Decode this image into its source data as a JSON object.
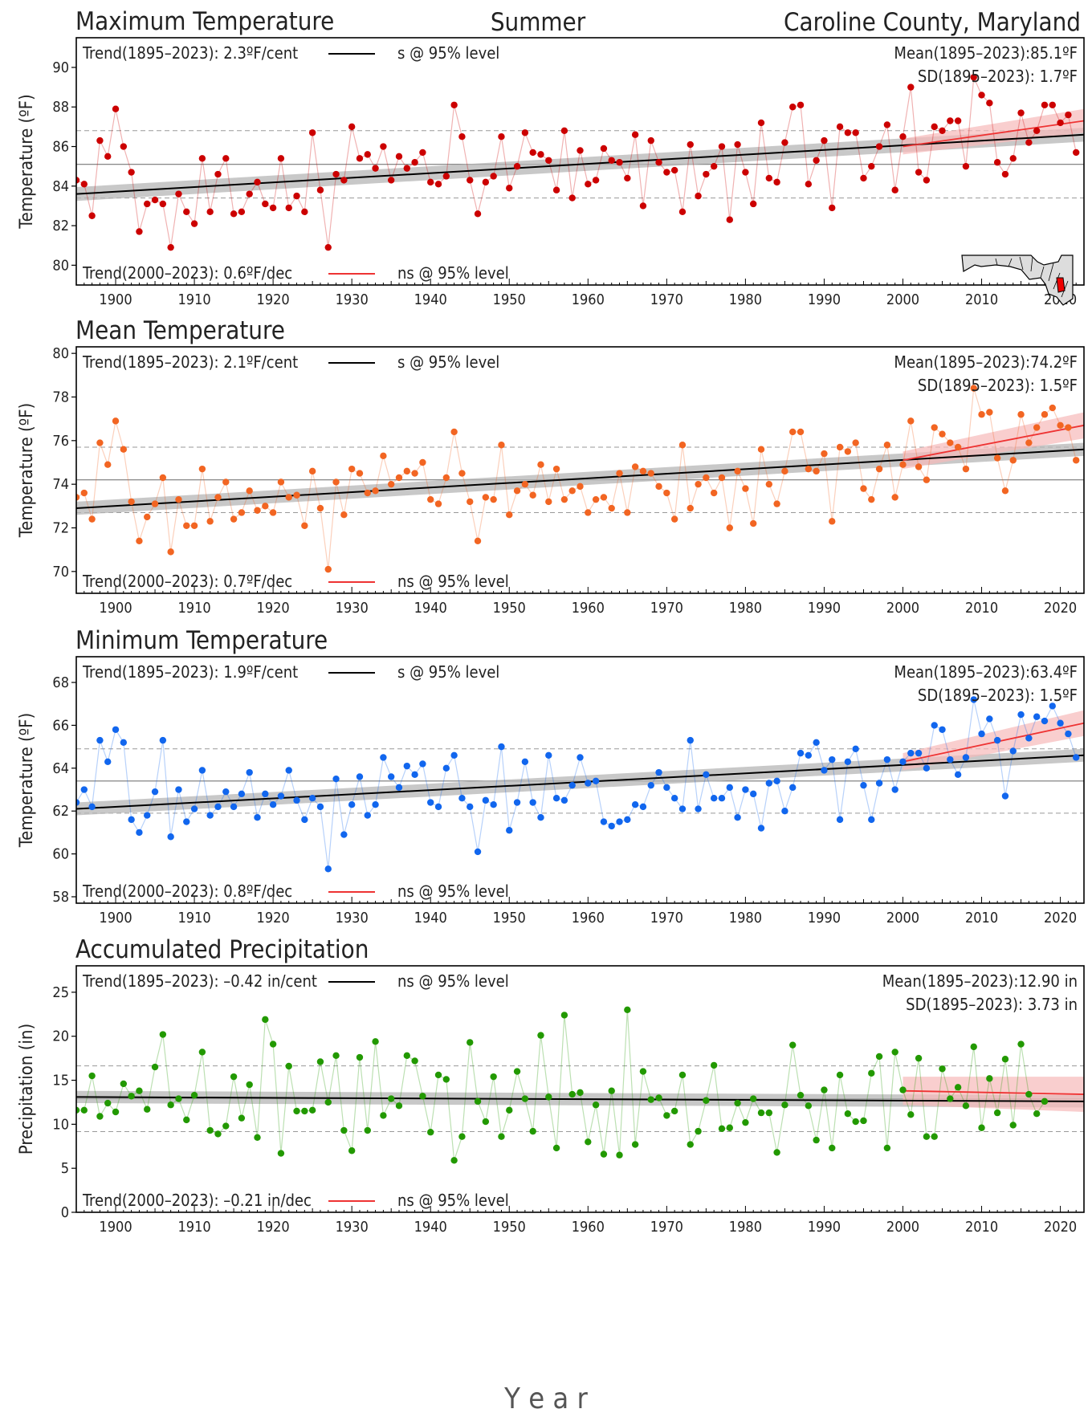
{
  "header": {
    "season": "Summer",
    "location": "Caroline County, Maryland",
    "xlabel": "Y e a r"
  },
  "colors": {
    "trend_long": "#000000",
    "trend_recent": "#ee3333",
    "band_long": "#b5b5b5",
    "band_recent": "#f6b9b9",
    "max_temp": "#cc0000",
    "mean_temp": "#f26522",
    "min_temp": "#1166ee",
    "precip": "#229900"
  },
  "chart_data": [
    {
      "id": "max",
      "type": "line",
      "title": "Maximum Temperature",
      "ylabel": "Temperature (ºF)",
      "color": "#cc0000",
      "ylim": [
        79,
        91.5
      ],
      "yticks": [
        80,
        82,
        84,
        86,
        88,
        90
      ],
      "xlim": [
        1895,
        2023
      ],
      "xticks": [
        1900,
        1910,
        1920,
        1930,
        1940,
        1950,
        1960,
        1970,
        1980,
        1990,
        2000,
        2010,
        2020
      ],
      "start_year": 1895,
      "mean": 85.1,
      "sd": 1.7,
      "trend_long": {
        "y_start": 83.6,
        "y_end": 86.6,
        "band_start": 0.35,
        "band_end": 0.35
      },
      "trend_recent": {
        "y_start": 86.0,
        "y_end": 87.3,
        "band_start": 0.4,
        "band_end": 0.6
      },
      "legend_long": "Trend(1895–2023):  2.3ºF/cent",
      "legend_long_sig": "s @ 95% level",
      "legend_recent": "Trend(2000–2023):  0.6ºF/dec",
      "legend_recent_sig": "ns @ 95% level",
      "mean_label": "Mean(1895–2023):85.1ºF",
      "sd_label": "SD(1895–2023): 1.7ºF",
      "values": [
        84.3,
        84.1,
        82.5,
        86.3,
        85.5,
        87.9,
        86.0,
        84.7,
        81.7,
        83.1,
        83.3,
        83.1,
        80.9,
        83.6,
        82.7,
        82.1,
        85.4,
        82.7,
        84.6,
        85.4,
        82.6,
        82.7,
        83.6,
        84.2,
        83.1,
        82.9,
        85.4,
        82.9,
        83.5,
        82.7,
        86.7,
        83.8,
        80.9,
        84.6,
        84.3,
        87.0,
        85.4,
        85.6,
        84.9,
        86.0,
        84.3,
        85.5,
        84.9,
        85.2,
        85.7,
        84.2,
        84.1,
        84.5,
        88.1,
        86.5,
        84.3,
        82.6,
        84.2,
        84.5,
        86.5,
        83.9,
        85.0,
        86.7,
        85.7,
        85.6,
        85.3,
        83.8,
        86.8,
        83.4,
        85.8,
        84.1,
        84.3,
        85.9,
        85.3,
        85.2,
        84.4,
        86.6,
        83.0,
        86.3,
        85.2,
        84.7,
        84.8,
        82.7,
        86.1,
        83.5,
        84.6,
        85.0,
        86.0,
        82.3,
        86.1,
        84.7,
        83.1,
        87.2,
        84.4,
        84.2,
        86.2,
        88.0,
        88.1,
        84.1,
        85.3,
        86.3,
        82.9,
        87.0,
        86.7,
        86.7,
        84.4,
        85.0,
        86.0,
        87.1,
        83.8,
        86.5,
        89.0,
        84.7,
        84.3,
        87.0,
        86.8,
        87.3,
        87.3,
        85.0,
        89.5,
        88.6,
        88.2,
        85.2,
        84.6,
        85.4,
        87.7,
        86.2,
        86.8,
        88.1,
        88.1,
        87.2,
        87.6,
        85.7
      ]
    },
    {
      "id": "mean",
      "type": "line",
      "title": "Mean Temperature",
      "ylabel": "Temperature (ºF)",
      "color": "#f26522",
      "ylim": [
        69,
        80.3
      ],
      "yticks": [
        70,
        72,
        74,
        76,
        78,
        80
      ],
      "xlim": [
        1895,
        2023
      ],
      "xticks": [
        1900,
        1910,
        1920,
        1930,
        1940,
        1950,
        1960,
        1970,
        1980,
        1990,
        2000,
        2010,
        2020
      ],
      "start_year": 1895,
      "mean": 74.2,
      "sd": 1.5,
      "trend_long": {
        "y_start": 72.9,
        "y_end": 75.6,
        "band_start": 0.3,
        "band_end": 0.3
      },
      "trend_recent": {
        "y_start": 75.1,
        "y_end": 76.7,
        "band_start": 0.4,
        "band_end": 0.6
      },
      "legend_long": "Trend(1895–2023):  2.1ºF/cent",
      "legend_long_sig": "s @ 95% level",
      "legend_recent": "Trend(2000–2023):  0.7ºF/dec",
      "legend_recent_sig": "ns @ 95% level",
      "mean_label": "Mean(1895–2023):74.2ºF",
      "sd_label": "SD(1895–2023): 1.5ºF",
      "values": [
        73.4,
        73.6,
        72.4,
        75.9,
        74.9,
        76.9,
        75.6,
        73.2,
        71.4,
        72.5,
        73.1,
        74.3,
        70.9,
        73.3,
        72.1,
        72.1,
        74.7,
        72.3,
        73.4,
        74.1,
        72.4,
        72.7,
        73.7,
        72.8,
        73.0,
        72.7,
        74.1,
        73.4,
        73.5,
        72.1,
        74.6,
        72.9,
        70.1,
        74.1,
        72.6,
        74.7,
        74.5,
        73.6,
        73.7,
        75.3,
        74.0,
        74.3,
        74.6,
        74.5,
        75.0,
        73.3,
        73.1,
        74.3,
        76.4,
        74.5,
        73.2,
        71.4,
        73.4,
        73.3,
        75.8,
        72.6,
        73.7,
        74.0,
        73.5,
        74.9,
        73.2,
        74.7,
        73.3,
        73.7,
        73.9,
        72.7,
        73.3,
        73.4,
        72.9,
        74.5,
        72.7,
        74.8,
        74.6,
        74.5,
        73.9,
        73.6,
        72.4,
        75.8,
        72.9,
        74.0,
        74.3,
        73.6,
        74.3,
        72.0,
        74.6,
        73.8,
        72.2,
        75.6,
        74.0,
        73.1,
        74.6,
        76.4,
        76.4,
        74.7,
        74.6,
        75.4,
        72.3,
        75.7,
        75.5,
        75.9,
        73.8,
        73.3,
        74.7,
        75.8,
        73.4,
        74.9,
        76.9,
        74.8,
        74.2,
        76.6,
        76.3,
        75.9,
        75.7,
        74.7,
        78.4,
        77.2,
        77.3,
        75.2,
        73.7,
        75.1,
        77.2,
        75.9,
        76.6,
        77.2,
        77.5,
        76.7,
        76.6,
        75.1
      ]
    },
    {
      "id": "min",
      "type": "line",
      "title": "Minimum Temperature",
      "ylabel": "Temperature (ºF)",
      "color": "#1166ee",
      "ylim": [
        57.7,
        69.2
      ],
      "yticks": [
        58,
        60,
        62,
        64,
        66,
        68
      ],
      "xlim": [
        1895,
        2023
      ],
      "xticks": [
        1900,
        1910,
        1920,
        1930,
        1940,
        1950,
        1960,
        1970,
        1980,
        1990,
        2000,
        2010,
        2020
      ],
      "start_year": 1895,
      "mean": 63.4,
      "sd": 1.5,
      "trend_long": {
        "y_start": 62.1,
        "y_end": 64.6,
        "band_start": 0.3,
        "band_end": 0.3
      },
      "trend_recent": {
        "y_start": 64.3,
        "y_end": 66.1,
        "band_start": 0.4,
        "band_end": 0.6
      },
      "legend_long": "Trend(1895–2023):  1.9ºF/cent",
      "legend_long_sig": "s @ 95% level",
      "legend_recent": "Trend(2000–2023):  0.8ºF/dec",
      "legend_recent_sig": "ns @ 95% level",
      "mean_label": "Mean(1895–2023):63.4ºF",
      "sd_label": "SD(1895–2023): 1.5ºF",
      "values": [
        62.4,
        63.0,
        62.2,
        65.3,
        64.3,
        65.8,
        65.2,
        61.6,
        61.0,
        61.8,
        62.9,
        65.3,
        60.8,
        63.0,
        61.5,
        62.1,
        63.9,
        61.8,
        62.2,
        62.9,
        62.2,
        62.8,
        63.8,
        61.7,
        62.8,
        62.3,
        62.7,
        63.9,
        62.5,
        61.6,
        62.6,
        62.2,
        59.3,
        63.5,
        60.9,
        62.3,
        63.6,
        61.8,
        62.3,
        64.5,
        63.6,
        63.1,
        64.1,
        63.7,
        64.2,
        62.4,
        62.2,
        64.0,
        64.6,
        62.6,
        62.2,
        60.1,
        62.5,
        62.3,
        65.0,
        61.1,
        62.4,
        64.3,
        62.4,
        61.7,
        64.6,
        62.6,
        62.5,
        63.2,
        64.5,
        63.3,
        63.4,
        61.5,
        61.3,
        61.5,
        61.6,
        62.3,
        62.2,
        63.2,
        63.8,
        63.1,
        62.6,
        62.1,
        65.3,
        62.1,
        63.7,
        62.6,
        62.6,
        63.1,
        61.7,
        63.0,
        62.8,
        61.2,
        63.3,
        63.4,
        62.0,
        63.1,
        64.7,
        64.6,
        65.2,
        63.9,
        64.4,
        61.6,
        64.3,
        64.9,
        63.2,
        61.6,
        63.3,
        64.4,
        63.0,
        64.3,
        64.7,
        64.7,
        64.0,
        66.0,
        65.8,
        64.4,
        63.7,
        64.5,
        67.2,
        65.6,
        66.3,
        65.3,
        62.7,
        64.8,
        66.5,
        65.4,
        66.4,
        66.2,
        66.9,
        66.1,
        65.6,
        64.5
      ]
    },
    {
      "id": "precip",
      "type": "line",
      "title": "Accumulated Precipitation",
      "ylabel": "Precipitation (in)",
      "color": "#229900",
      "ylim": [
        0,
        28
      ],
      "yticks": [
        0,
        5,
        10,
        15,
        20,
        25
      ],
      "xlim": [
        1895,
        2023
      ],
      "xticks": [
        1900,
        1910,
        1920,
        1930,
        1940,
        1950,
        1960,
        1970,
        1980,
        1990,
        2000,
        2010,
        2020
      ],
      "start_year": 1895,
      "mean": 12.9,
      "sd": 3.73,
      "trend_long": {
        "y_start": 13.1,
        "y_end": 12.6,
        "band_start": 0.7,
        "band_end": 0.7
      },
      "trend_recent": {
        "y_start": 13.8,
        "y_end": 13.4,
        "band_start": 1.6,
        "band_end": 2.0
      },
      "legend_long": "Trend(1895–2023): –0.42 in/cent",
      "legend_long_sig": "ns @ 95% level",
      "legend_recent": "Trend(2000–2023): –0.21 in/dec",
      "legend_recent_sig": "ns @ 95% level",
      "mean_label": "Mean(1895–2023):12.90 in",
      "sd_label": "SD(1895–2023): 3.73 in",
      "values": [
        11.6,
        11.6,
        15.5,
        10.9,
        12.4,
        11.4,
        14.6,
        13.2,
        13.8,
        11.7,
        16.5,
        20.2,
        12.2,
        12.9,
        10.5,
        13.3,
        18.2,
        9.3,
        8.9,
        9.8,
        15.4,
        10.7,
        14.5,
        8.5,
        21.9,
        19.1,
        6.7,
        16.6,
        11.5,
        11.5,
        11.6,
        17.1,
        12.5,
        17.8,
        9.3,
        7.0,
        17.6,
        9.3,
        19.4,
        11.0,
        12.9,
        12.1,
        17.8,
        17.2,
        13.2,
        9.1,
        15.6,
        15.1,
        5.9,
        8.6,
        19.3,
        12.6,
        10.3,
        15.4,
        8.6,
        11.6,
        16.0,
        12.9,
        9.2,
        20.1,
        13.1,
        7.3,
        22.4,
        13.4,
        13.6,
        8.0,
        12.2,
        6.6,
        13.8,
        6.5,
        23.0,
        7.7,
        16.0,
        12.8,
        13.0,
        11.0,
        11.5,
        15.6,
        7.7,
        9.2,
        12.7,
        16.7,
        9.5,
        9.6,
        12.4,
        10.2,
        12.9,
        11.3,
        11.3,
        6.8,
        12.2,
        19.0,
        13.3,
        12.1,
        8.2,
        13.9,
        7.3,
        15.6,
        11.2,
        10.3,
        10.4,
        15.8,
        17.7,
        7.3,
        18.2,
        13.9,
        11.1,
        17.5,
        8.6,
        8.6,
        16.3,
        12.9,
        14.2,
        12.1,
        18.8,
        9.6,
        15.2,
        11.3,
        17.4,
        9.9,
        19.1,
        13.4,
        11.2,
        12.6
      ]
    }
  ]
}
